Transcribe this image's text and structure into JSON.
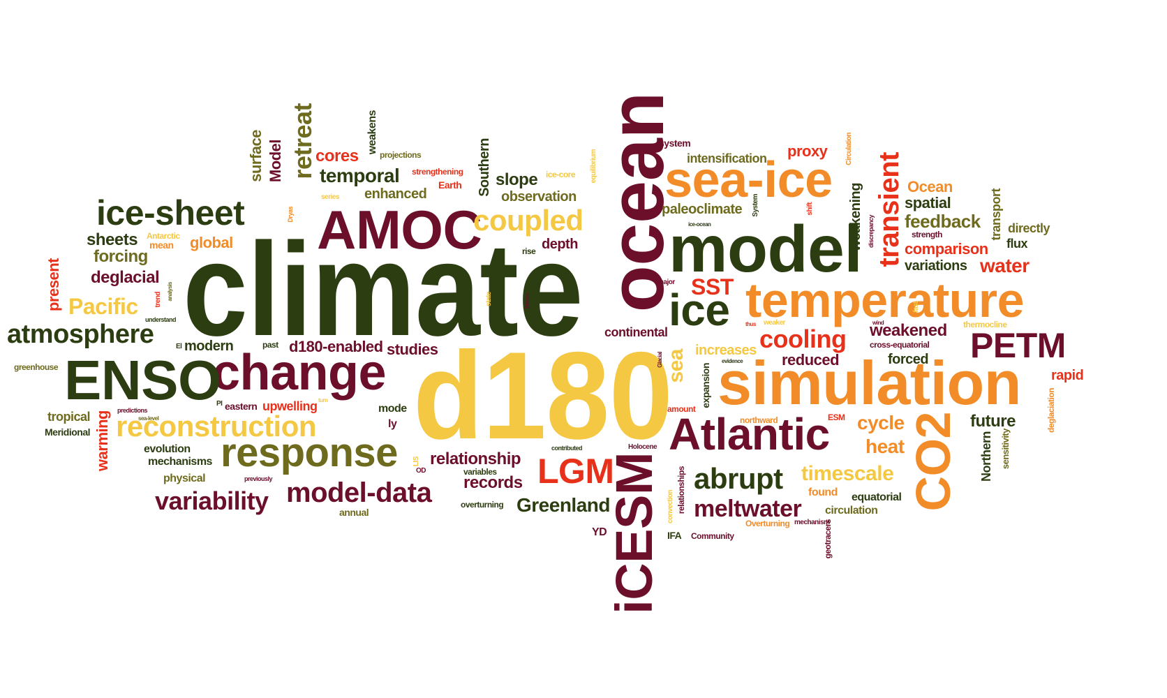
{
  "palette": {
    "dark_green": "#2d3d12",
    "olive": "#6e6a1e",
    "maroon": "#6b0f2a",
    "orange": "#f28c28",
    "yellow": "#f4c843",
    "red": "#e8311a",
    "background": "#ffffff"
  },
  "words": [
    {
      "text": "climate",
      "color": "#2d3d12"
    },
    {
      "text": "d180",
      "color": "#f4c843"
    },
    {
      "text": "ocean",
      "color": "#6b0f2a"
    },
    {
      "text": "model",
      "color": "#2d3d12"
    },
    {
      "text": "simulation",
      "color": "#f28c28"
    },
    {
      "text": "AMOC",
      "color": "#6b0f2a"
    },
    {
      "text": "sea-ice",
      "color": "#f28c28"
    },
    {
      "text": "temperature",
      "color": "#f28c28"
    },
    {
      "text": "change",
      "color": "#6b0f2a"
    },
    {
      "text": "ENSO",
      "color": "#2d3d12"
    },
    {
      "text": "ice-sheet",
      "color": "#2d3d12"
    },
    {
      "text": "iCESM",
      "color": "#6b0f2a"
    },
    {
      "text": "Atlantic",
      "color": "#6b0f2a"
    },
    {
      "text": "CO2",
      "color": "#f28c28"
    },
    {
      "text": "response",
      "color": "#6e6a1e"
    },
    {
      "text": "reconstruction",
      "color": "#f4c843"
    },
    {
      "text": "ice",
      "color": "#2d3d12"
    },
    {
      "text": "PETM",
      "color": "#6b0f2a"
    },
    {
      "text": "coupled",
      "color": "#f4c843"
    },
    {
      "text": "atmosphere",
      "color": "#2d3d12"
    },
    {
      "text": "model-data",
      "color": "#6b0f2a"
    },
    {
      "text": "abrupt",
      "color": "#2d3d12"
    },
    {
      "text": "LGM",
      "color": "#e8311a"
    },
    {
      "text": "variability",
      "color": "#6b0f2a"
    },
    {
      "text": "meltwater",
      "color": "#6b0f2a"
    },
    {
      "text": "transient",
      "color": "#e8311a"
    },
    {
      "text": "retreat",
      "color": "#6e6a1e"
    },
    {
      "text": "cooling",
      "color": "#e8311a"
    },
    {
      "text": "timescale",
      "color": "#f4c843"
    },
    {
      "text": "Pacific",
      "color": "#f4c843"
    },
    {
      "text": "sea",
      "color": "#f4c843"
    },
    {
      "text": "SST",
      "color": "#e8311a"
    },
    {
      "text": "temporal",
      "color": "#2d3d12"
    },
    {
      "text": "Greenland",
      "color": "#2d3d12"
    },
    {
      "text": "relationship",
      "color": "#6b0f2a"
    },
    {
      "text": "records",
      "color": "#6b0f2a"
    },
    {
      "text": "cycle",
      "color": "#f28c28"
    },
    {
      "text": "heat",
      "color": "#f28c28"
    },
    {
      "text": "water",
      "color": "#e8311a"
    },
    {
      "text": "weakened",
      "color": "#6b0f2a"
    },
    {
      "text": "feedback",
      "color": "#6e6a1e"
    },
    {
      "text": "future",
      "color": "#2d3d12"
    },
    {
      "text": "sheets",
      "color": "#2d3d12"
    },
    {
      "text": "forcing",
      "color": "#6e6a1e"
    },
    {
      "text": "deglacial",
      "color": "#6b0f2a"
    },
    {
      "text": "slope",
      "color": "#2d3d12"
    },
    {
      "text": "enhanced",
      "color": "#6e6a1e"
    },
    {
      "text": "observation",
      "color": "#6e6a1e"
    },
    {
      "text": "cores",
      "color": "#e8311a"
    },
    {
      "text": "global",
      "color": "#f28c28"
    },
    {
      "text": "depth",
      "color": "#6b0f2a"
    },
    {
      "text": "proxy",
      "color": "#e8311a"
    },
    {
      "text": "intensification",
      "color": "#6e6a1e"
    },
    {
      "text": "paleoclimate",
      "color": "#6e6a1e"
    },
    {
      "text": "d180-enabled",
      "color": "#6b0f2a"
    },
    {
      "text": "studies",
      "color": "#6b0f2a"
    },
    {
      "text": "modern",
      "color": "#2d3d12"
    },
    {
      "text": "continental",
      "color": "#6b0f2a"
    },
    {
      "text": "increases",
      "color": "#f4c843"
    },
    {
      "text": "reduced",
      "color": "#6b0f2a"
    },
    {
      "text": "forced",
      "color": "#2d3d12"
    },
    {
      "text": "rapid",
      "color": "#e8311a"
    },
    {
      "text": "spatial",
      "color": "#2d3d12"
    },
    {
      "text": "Ocean",
      "color": "#f28c28"
    },
    {
      "text": "comparison",
      "color": "#e8311a"
    },
    {
      "text": "variations",
      "color": "#2d3d12"
    },
    {
      "text": "directly",
      "color": "#6e6a1e"
    },
    {
      "text": "flux",
      "color": "#2d3d12"
    },
    {
      "text": "present",
      "color": "#e8311a"
    },
    {
      "text": "surface",
      "color": "#6e6a1e"
    },
    {
      "text": "Model",
      "color": "#6b0f2a"
    },
    {
      "text": "Southern",
      "color": "#2d3d12"
    },
    {
      "text": "weakens",
      "color": "#2d3d12"
    },
    {
      "text": "warming",
      "color": "#e8311a"
    },
    {
      "text": "tropical",
      "color": "#6e6a1e"
    },
    {
      "text": "Meridional",
      "color": "#2d3d12"
    },
    {
      "text": "upwelling",
      "color": "#e8311a"
    },
    {
      "text": "eastern",
      "color": "#6b0f2a"
    },
    {
      "text": "evolution",
      "color": "#2d3d12"
    },
    {
      "text": "mechanisms",
      "color": "#2d3d12"
    },
    {
      "text": "physical",
      "color": "#6e6a1e"
    },
    {
      "text": "mode",
      "color": "#2d3d12"
    },
    {
      "text": "ly",
      "color": "#6b0f2a"
    },
    {
      "text": "annual",
      "color": "#6e6a1e"
    },
    {
      "text": "overturning",
      "color": "#2d3d12"
    },
    {
      "text": "variables",
      "color": "#2d3d12"
    },
    {
      "text": "YD",
      "color": "#6b0f2a"
    },
    {
      "text": "IFA",
      "color": "#2d3d12"
    },
    {
      "text": "Community",
      "color": "#6b0f2a"
    },
    {
      "text": "Overturning",
      "color": "#f28c28"
    },
    {
      "text": "found",
      "color": "#f28c28"
    },
    {
      "text": "circulation",
      "color": "#6e6a1e"
    },
    {
      "text": "equatorial",
      "color": "#2d3d12"
    },
    {
      "text": "Northern",
      "color": "#2d3d12"
    },
    {
      "text": "sensitivity",
      "color": "#6e6a1e"
    },
    {
      "text": "deglaciation",
      "color": "#f28c28"
    },
    {
      "text": "weakening",
      "color": "#2d3d12"
    },
    {
      "text": "transport",
      "color": "#6e6a1e"
    },
    {
      "text": "strength",
      "color": "#6b0f2a"
    },
    {
      "text": "thermocline",
      "color": "#f4c843"
    },
    {
      "text": "cross-equatorial",
      "color": "#6b0f2a"
    },
    {
      "text": "expansion",
      "color": "#2d3d12"
    },
    {
      "text": "amount",
      "color": "#e8311a"
    },
    {
      "text": "northward",
      "color": "#f28c28"
    },
    {
      "text": "ESM",
      "color": "#e8311a"
    },
    {
      "text": "mechanism",
      "color": "#6b0f2a"
    },
    {
      "text": "geotracers",
      "color": "#6b0f2a"
    },
    {
      "text": "relationships",
      "color": "#6b0f2a"
    },
    {
      "text": "convection",
      "color": "#f4c843"
    },
    {
      "text": "period",
      "color": "#f4c843"
    },
    {
      "text": "Holocene",
      "color": "#6b0f2a"
    },
    {
      "text": "contributed",
      "color": "#2d3d12"
    },
    {
      "text": "LIS",
      "color": "#f4c843"
    },
    {
      "text": "OD",
      "color": "#6b0f2a"
    },
    {
      "text": "previously",
      "color": "#6b0f2a"
    },
    {
      "text": "predictions",
      "color": "#6b0f2a"
    },
    {
      "text": "sea-level",
      "color": "#6e6a1e"
    },
    {
      "text": "PI",
      "color": "#2d3d12"
    },
    {
      "text": "turn",
      "color": "#f4c843"
    },
    {
      "text": "greenhouse",
      "color": "#6e6a1e"
    },
    {
      "text": "El",
      "color": "#2d3d12"
    },
    {
      "text": "past",
      "color": "#2d3d12"
    },
    {
      "text": "understand",
      "color": "#2d3d12"
    },
    {
      "text": "trend",
      "color": "#e8311a"
    },
    {
      "text": "analysis",
      "color": "#6e6a1e"
    },
    {
      "text": "state",
      "color": "#f4c843"
    },
    {
      "text": "biases",
      "color": "#6b0f2a"
    },
    {
      "text": "major",
      "color": "#6b0f2a"
    },
    {
      "text": "rise",
      "color": "#2d3d12"
    },
    {
      "text": "mean",
      "color": "#f28c28"
    },
    {
      "text": "Antarctic",
      "color": "#f4c843"
    },
    {
      "text": "series",
      "color": "#f4c843"
    },
    {
      "text": "Dryas",
      "color": "#f28c28"
    },
    {
      "text": "projections",
      "color": "#6e6a1e"
    },
    {
      "text": "strengthening",
      "color": "#e8311a"
    },
    {
      "text": "Earth",
      "color": "#e8311a"
    },
    {
      "text": "ice-core",
      "color": "#f4c843"
    },
    {
      "text": "equilibrium",
      "color": "#f4c843"
    },
    {
      "text": "system",
      "color": "#6b0f2a"
    },
    {
      "text": "System",
      "color": "#2d3d12"
    },
    {
      "text": "ice-ocean",
      "color": "#2d3d12"
    },
    {
      "text": "shift",
      "color": "#e8311a"
    },
    {
      "text": "Circulation",
      "color": "#f28c28"
    },
    {
      "text": "discrepancy",
      "color": "#6b0f2a"
    },
    {
      "text": "fast",
      "color": "#f4c843"
    },
    {
      "text": "wind",
      "color": "#6b0f2a"
    },
    {
      "text": "thus",
      "color": "#e8311a"
    },
    {
      "text": "weaker",
      "color": "#f4c843"
    },
    {
      "text": "evidence",
      "color": "#2d3d12"
    },
    {
      "text": "Glacial",
      "color": "#6b0f2a"
    }
  ]
}
